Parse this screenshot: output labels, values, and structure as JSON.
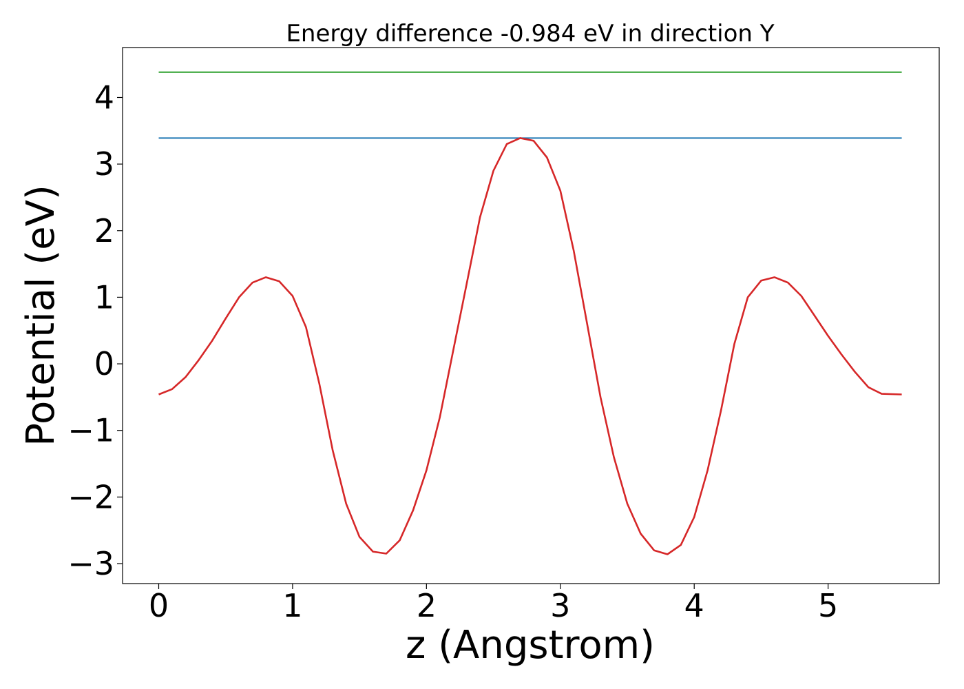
{
  "chart_data": {
    "type": "line",
    "title": "Energy difference -0.984 eV in direction Y",
    "xlabel": "z (Angstrom)",
    "ylabel": "Potential (eV)",
    "xlim": [
      -0.27,
      5.83
    ],
    "ylim": [
      -3.3,
      4.75
    ],
    "xticks": [
      0,
      1,
      2,
      3,
      4,
      5
    ],
    "xtick_labels": [
      "0",
      "1",
      "2",
      "3",
      "4",
      "5"
    ],
    "yticks": [
      -3,
      -2,
      -1,
      0,
      1,
      2,
      3,
      4
    ],
    "ytick_labels": [
      "−3",
      "−2",
      "−1",
      "0",
      "1",
      "2",
      "3",
      "4"
    ],
    "grid": false,
    "series": [
      {
        "color": "#2ca02c",
        "x": [
          0,
          5.55
        ],
        "y": [
          4.38,
          4.38
        ]
      },
      {
        "color": "#1f77b4",
        "x": [
          0,
          5.55
        ],
        "y": [
          3.39,
          3.39
        ]
      },
      {
        "color": "#d62728",
        "x": [
          0,
          0.1,
          0.2,
          0.3,
          0.4,
          0.5,
          0.6,
          0.7,
          0.8,
          0.9,
          1.0,
          1.1,
          1.2,
          1.3,
          1.4,
          1.5,
          1.6,
          1.7,
          1.8,
          1.9,
          2.0,
          2.1,
          2.2,
          2.3,
          2.4,
          2.5,
          2.6,
          2.7,
          2.8,
          2.9,
          3.0,
          3.1,
          3.2,
          3.3,
          3.4,
          3.5,
          3.6,
          3.7,
          3.8,
          3.9,
          4.0,
          4.1,
          4.2,
          4.3,
          4.4,
          4.5,
          4.6,
          4.7,
          4.8,
          4.9,
          5.0,
          5.1,
          5.2,
          5.3,
          5.4,
          5.55
        ],
        "y": [
          -0.46,
          -0.38,
          -0.2,
          0.06,
          0.35,
          0.68,
          1.0,
          1.22,
          1.3,
          1.24,
          1.02,
          0.55,
          -0.3,
          -1.3,
          -2.1,
          -2.6,
          -2.82,
          -2.85,
          -2.65,
          -2.2,
          -1.6,
          -0.8,
          0.2,
          1.2,
          2.2,
          2.9,
          3.3,
          3.39,
          3.35,
          3.1,
          2.6,
          1.7,
          0.6,
          -0.5,
          -1.4,
          -2.1,
          -2.55,
          -2.8,
          -2.86,
          -2.72,
          -2.3,
          -1.6,
          -0.7,
          0.3,
          1.0,
          1.25,
          1.3,
          1.22,
          1.02,
          0.72,
          0.42,
          0.14,
          -0.12,
          -0.35,
          -0.45,
          -0.46
        ]
      }
    ]
  }
}
